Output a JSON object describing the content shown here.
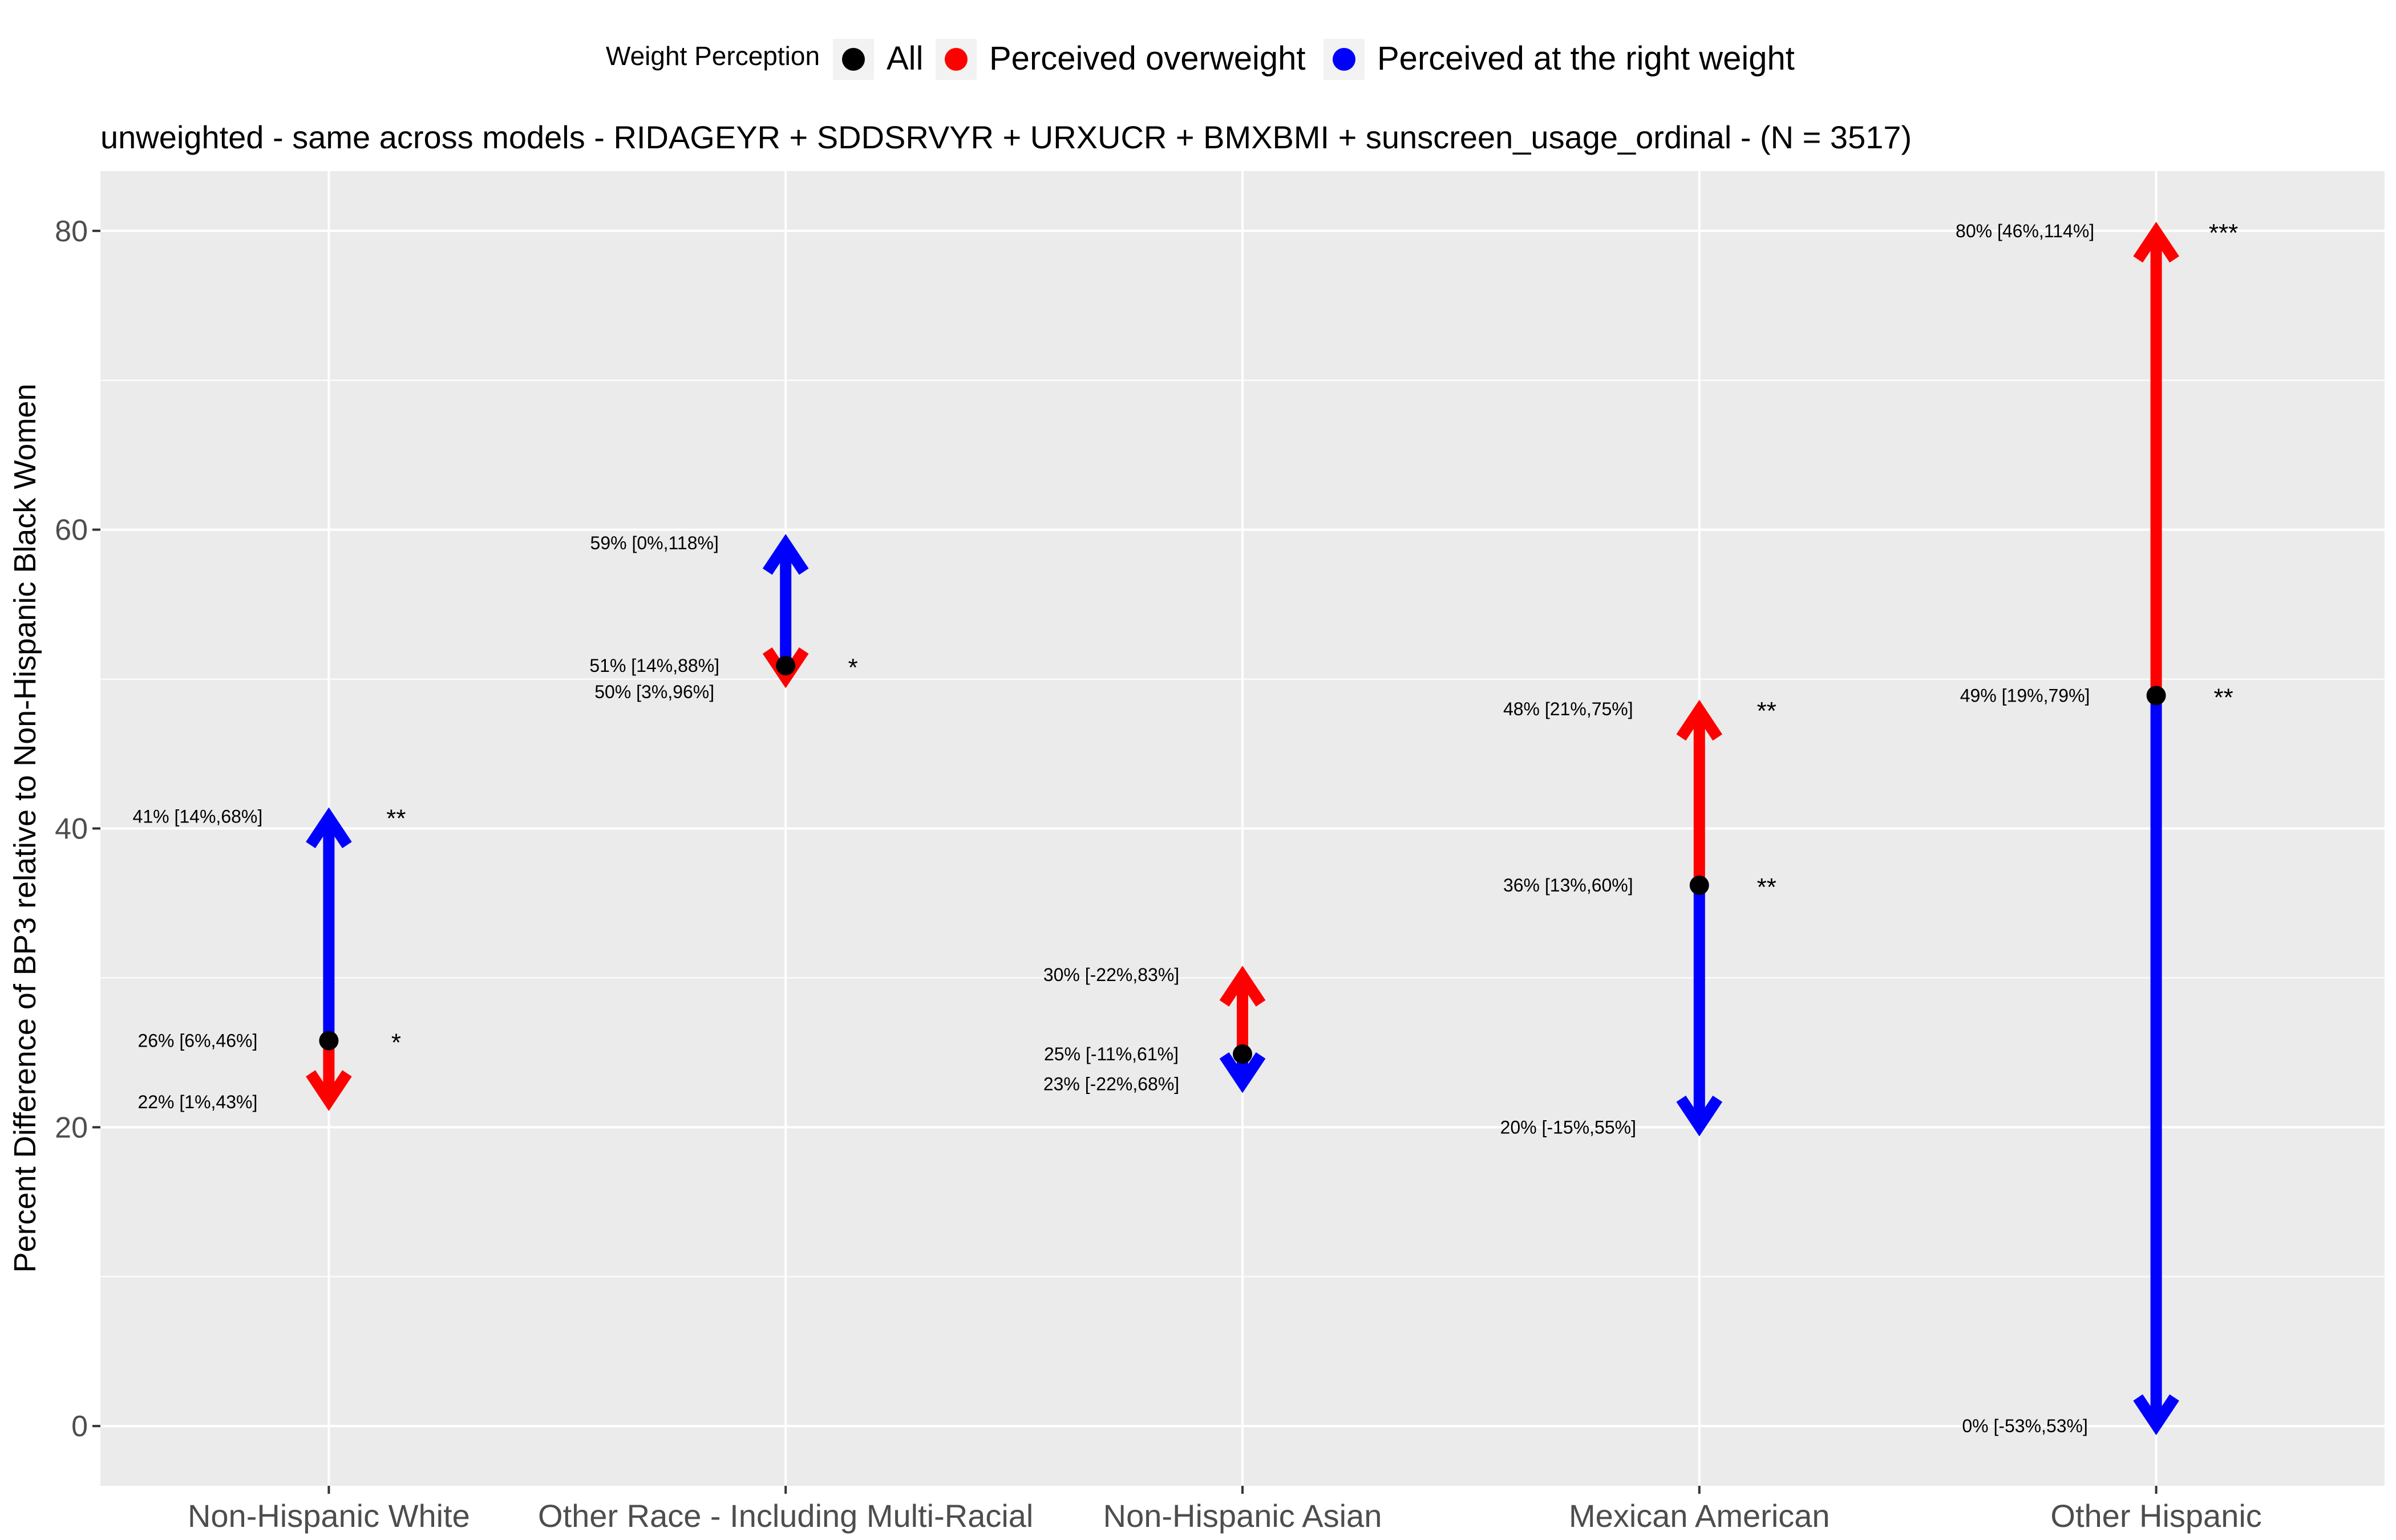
{
  "chart_data": {
    "type": "scatter",
    "title": "unweighted - same across models - RIDAGEYR + SDDSRVYR + URXUCR + BMXBMI + sunscreen_usage_ordinal - (N = 3517)",
    "xlabel": "",
    "ylabel": "Percent Difference of BP3 relative to Non-Hispanic Black Women",
    "ylim": [
      -4,
      84
    ],
    "yticks": [
      0,
      20,
      40,
      60,
      80
    ],
    "grid": true,
    "legend": {
      "title": "Weight Perception",
      "placement": "top",
      "entries": [
        {
          "name": "All",
          "color": "#000000"
        },
        {
          "name": "Perceived overweight",
          "color": "#ff0000"
        },
        {
          "name": "Perceived at the right weight",
          "color": "#0000ff"
        }
      ]
    },
    "categories": [
      "Non-Hispanic White",
      "Other Race - Including Multi-Racial",
      "Non-Hispanic Asian",
      "Mexican American",
      "Other Hispanic"
    ],
    "points": [
      {
        "category": "Non-Hispanic White",
        "all": 25.8,
        "overweight": 21.7,
        "right_weight": 40.8,
        "labels": {
          "all": "26% [6%,46%]",
          "overweight": "22% [1%,43%]",
          "right_weight": "41% [14%,68%]"
        },
        "sig": {
          "all": "*",
          "right_weight": "**"
        }
      },
      {
        "category": "Other Race - Including Multi-Racial",
        "all": 50.9,
        "overweight": 50.0,
        "right_weight": 59.1,
        "labels": {
          "all": "51% [14%,88%]",
          "overweight": "50% [3%,96%]",
          "right_weight": "59% [0%,118%]"
        },
        "sig": {
          "all": "*"
        }
      },
      {
        "category": "Non-Hispanic Asian",
        "all": 24.9,
        "overweight": 30.2,
        "right_weight": 22.9,
        "labels": {
          "all": "25% [-11%,61%]",
          "overweight": "30% [-22%,83%]",
          "right_weight": "23% [-22%,68%]"
        },
        "sig": {}
      },
      {
        "category": "Mexican American",
        "all": 36.2,
        "overweight": 48.0,
        "right_weight": 20.0,
        "labels": {
          "all": "36% [13%,60%]",
          "overweight": "48% [21%,75%]",
          "right_weight": "20% [-15%,55%]"
        },
        "sig": {
          "all": "**",
          "overweight": "**"
        }
      },
      {
        "category": "Other Hispanic",
        "all": 48.9,
        "overweight": 80.0,
        "right_weight": 0.0,
        "labels": {
          "all": "49% [19%,79%]",
          "overweight": "80% [46%,114%]",
          "right_weight": "0% [-53%,53%]"
        },
        "sig": {
          "all": "**",
          "overweight": "***"
        }
      }
    ]
  }
}
